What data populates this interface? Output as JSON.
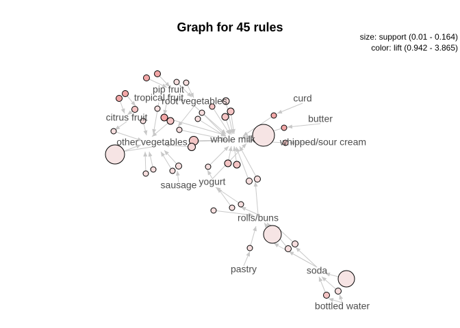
{
  "graph": {
    "title": "Graph for 45 rules",
    "legend": {
      "size_text": "size: support (0.01 - 0.164)",
      "color_text": "color: lift (0.942 - 3.865)"
    },
    "items": [
      {
        "id": "pip fruit",
        "label": "pip fruit"
      },
      {
        "id": "tropical fruit",
        "label": "tropical fruit"
      },
      {
        "id": "root vegetables",
        "label": "root vegetables"
      },
      {
        "id": "citrus fruit",
        "label": "citrus fruit"
      },
      {
        "id": "other vegetables",
        "label": "other vegetables"
      },
      {
        "id": "whole milk",
        "label": "whole milk"
      },
      {
        "id": "curd",
        "label": "curd"
      },
      {
        "id": "butter",
        "label": "butter"
      },
      {
        "id": "whipped/sour cream",
        "label": "whipped/sour cream"
      },
      {
        "id": "yogurt",
        "label": "yogurt"
      },
      {
        "id": "sausage",
        "label": "sausage"
      },
      {
        "id": "rolls/buns",
        "label": "rolls/buns"
      },
      {
        "id": "pastry",
        "label": "pastry"
      },
      {
        "id": "soda",
        "label": "soda"
      },
      {
        "id": "bottled water",
        "label": "bottled water"
      }
    ]
  }
}
